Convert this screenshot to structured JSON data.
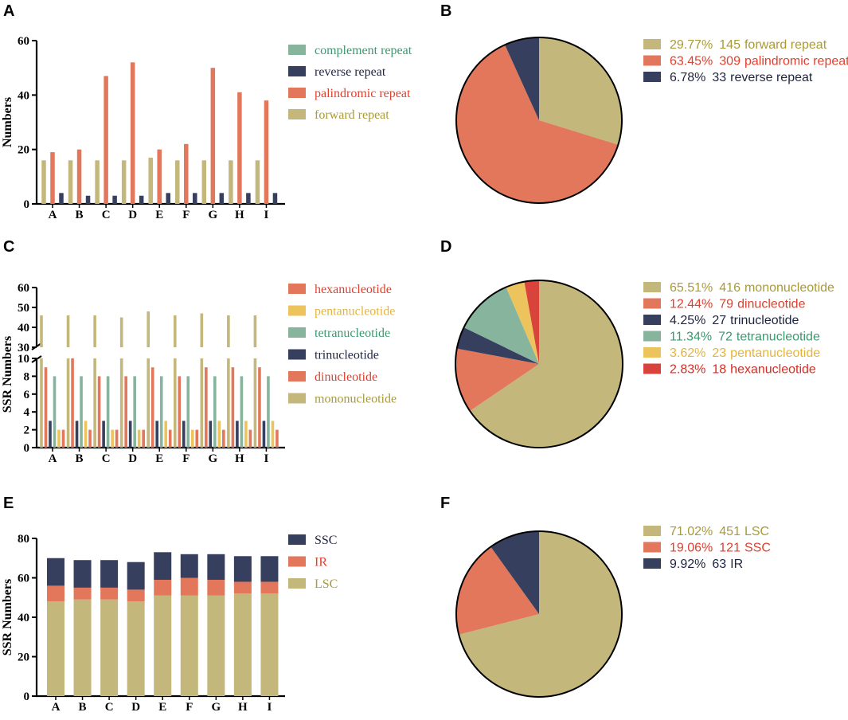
{
  "colors": {
    "complement": "#86b49c",
    "reverse": "#373f5e",
    "palindromic": "#e2775c",
    "forward": "#c3b77c",
    "hexanucleotide": "#e2775c",
    "pentanucleotide": "#ecc35c",
    "tetranucleotide": "#86b49c",
    "trinucleotide": "#373f5e",
    "dinucleotide": "#e2775c",
    "mononucleotide": "#c3b77c",
    "hex_pie": "#d8433b",
    "ssc": "#373f5e",
    "ir": "#e2775c",
    "lsc": "#c3b77c",
    "text_forward": "#a99a3a",
    "text_palindromic": "#e0402e",
    "text_reverse": "#1f2440",
    "text_complement": "#3d9870",
    "text_penta": "#e5b53a",
    "text_hex": "#d92b20"
  },
  "panel_labels": [
    "A",
    "B",
    "C",
    "D",
    "E",
    "F"
  ],
  "chart_data": [
    {
      "id": "A",
      "type": "bar",
      "categories": [
        "A",
        "B",
        "C",
        "D",
        "E",
        "F",
        "G",
        "H",
        "I"
      ],
      "series": [
        {
          "name": "forward repeat",
          "color_key": "forward",
          "values": [
            16,
            16,
            16,
            16,
            17,
            16,
            16,
            16,
            16
          ]
        },
        {
          "name": "palindromic repeat",
          "color_key": "palindromic",
          "values": [
            19,
            20,
            47,
            52,
            20,
            22,
            50,
            41,
            38
          ]
        },
        {
          "name": "reverse repeat",
          "color_key": "reverse",
          "values": [
            4,
            3,
            3,
            3,
            4,
            4,
            4,
            4,
            4
          ]
        }
      ],
      "legend": [
        {
          "label": "complement repeat",
          "color_key": "complement",
          "text_key": "text_complement"
        },
        {
          "label": "reverse repeat",
          "color_key": "reverse",
          "text_key": "text_reverse"
        },
        {
          "label": "palindromic repeat",
          "color_key": "palindromic",
          "text_key": "text_palindromic"
        },
        {
          "label": "forward repeat",
          "color_key": "forward",
          "text_key": "text_forward"
        }
      ],
      "ylabel": "Numbers",
      "ylim": [
        0,
        60
      ],
      "yticks": [
        0,
        20,
        40,
        60
      ]
    },
    {
      "id": "B",
      "type": "pie",
      "slices": [
        {
          "pct": "29.77%",
          "count": "145",
          "label": "forward repeat",
          "value": 145,
          "color_key": "forward",
          "text_key": "text_forward"
        },
        {
          "pct": "63.45%",
          "count": "309",
          "label": "palindromic repeat",
          "value": 309,
          "color_key": "palindromic",
          "text_key": "text_palindromic"
        },
        {
          "pct": "6.78%",
          "count": "33",
          "label": "reverse repeat",
          "value": 33,
          "color_key": "reverse",
          "text_key": "text_reverse"
        }
      ]
    },
    {
      "id": "C",
      "type": "bar",
      "categories": [
        "A",
        "B",
        "C",
        "D",
        "E",
        "F",
        "G",
        "H",
        "I"
      ],
      "series": [
        {
          "name": "mononucleotide",
          "color_key": "mononucleotide",
          "values": [
            46,
            46,
            46,
            45,
            48,
            46,
            47,
            46,
            46
          ]
        },
        {
          "name": "dinucleotide",
          "color_key": "dinucleotide",
          "values": [
            9,
            10,
            8,
            8,
            9,
            8,
            9,
            9,
            9
          ]
        },
        {
          "name": "trinucleotide",
          "color_key": "trinucleotide",
          "values": [
            3,
            3,
            3,
            3,
            3,
            3,
            3,
            3,
            3
          ]
        },
        {
          "name": "tetranucleotide",
          "color_key": "tetranucleotide",
          "values": [
            8,
            8,
            8,
            8,
            8,
            8,
            8,
            8,
            8
          ]
        },
        {
          "name": "pentanucleotide",
          "color_key": "pentanucleotide",
          "values": [
            2,
            3,
            2,
            2,
            3,
            2,
            3,
            3,
            3
          ]
        },
        {
          "name": "hexanucleotide",
          "color_key": "hexanucleotide",
          "values": [
            2,
            2,
            2,
            2,
            2,
            2,
            2,
            2,
            2
          ]
        }
      ],
      "legend": [
        {
          "label": "hexanucleotide",
          "color_key": "hexanucleotide",
          "text_key": "text_palindromic"
        },
        {
          "label": "pentanucleotide",
          "color_key": "pentanucleotide",
          "text_key": "text_penta"
        },
        {
          "label": "tetranucleotide",
          "color_key": "tetranucleotide",
          "text_key": "text_complement"
        },
        {
          "label": "trinucleotide",
          "color_key": "trinucleotide",
          "text_key": "text_reverse"
        },
        {
          "label": "dinucleotide",
          "color_key": "dinucleotide",
          "text_key": "text_palindromic"
        },
        {
          "label": "mononucleotide",
          "color_key": "mononucleotide",
          "text_key": "text_forward"
        }
      ],
      "ylabel": "SSR Numbers",
      "broken_axis": true,
      "lower_range": [
        0,
        10
      ],
      "upper_range": [
        30,
        60
      ],
      "yticks_lower": [
        0,
        2,
        4,
        6,
        8,
        10
      ],
      "yticks_upper": [
        30,
        40,
        50,
        60
      ]
    },
    {
      "id": "D",
      "type": "pie",
      "slices": [
        {
          "pct": "65.51%",
          "count": "416",
          "label": "mononucleotide",
          "value": 416,
          "color_key": "mononucleotide",
          "text_key": "text_forward"
        },
        {
          "pct": "12.44%",
          "count": "79",
          "label": "dinucleotide",
          "value": 79,
          "color_key": "dinucleotide",
          "text_key": "text_palindromic"
        },
        {
          "pct": "4.25%",
          "count": "27",
          "label": "trinucleotide",
          "value": 27,
          "color_key": "trinucleotide",
          "text_key": "text_reverse"
        },
        {
          "pct": "11.34%",
          "count": "72",
          "label": "tetranucleotide",
          "value": 72,
          "color_key": "tetranucleotide",
          "text_key": "text_complement"
        },
        {
          "pct": "3.62%",
          "count": "23",
          "label": "pentanucleotide",
          "value": 23,
          "color_key": "pentanucleotide",
          "text_key": "text_penta"
        },
        {
          "pct": "2.83%",
          "count": "18",
          "label": "hexanucleotide",
          "value": 18,
          "color_key": "hex_pie",
          "text_key": "text_hex"
        }
      ]
    },
    {
      "id": "E",
      "type": "bar",
      "stacked": true,
      "categories": [
        "A",
        "B",
        "C",
        "D",
        "E",
        "F",
        "G",
        "H",
        "I"
      ],
      "series": [
        {
          "name": "LSC",
          "color_key": "lsc",
          "values": [
            48,
            49,
            49,
            48,
            51,
            51,
            51,
            52,
            52
          ]
        },
        {
          "name": "IR",
          "color_key": "ir",
          "values": [
            8,
            6,
            6,
            6,
            8,
            9,
            8,
            6,
            6
          ]
        },
        {
          "name": "SSC",
          "color_key": "ssc",
          "values": [
            14,
            14,
            14,
            14,
            14,
            12,
            13,
            13,
            13
          ]
        }
      ],
      "legend": [
        {
          "label": "SSC",
          "color_key": "ssc",
          "text_key": "text_reverse"
        },
        {
          "label": "IR",
          "color_key": "ir",
          "text_key": "text_palindromic"
        },
        {
          "label": "LSC",
          "color_key": "lsc",
          "text_key": "text_forward"
        }
      ],
      "ylabel": "SSR Numbers",
      "ylim": [
        0,
        80
      ],
      "yticks": [
        0,
        20,
        40,
        60,
        80
      ]
    },
    {
      "id": "F",
      "type": "pie",
      "slices": [
        {
          "pct": "71.02%",
          "count": "451",
          "label": "LSC",
          "value": 451,
          "color_key": "lsc",
          "text_key": "text_forward"
        },
        {
          "pct": "19.06%",
          "count": "121",
          "label": "SSC",
          "value": 121,
          "color_key": "ir",
          "text_key": "text_palindromic"
        },
        {
          "pct": "9.92%",
          "count": "63",
          "label": "IR",
          "value": 63,
          "color_key": "ssc",
          "text_key": "text_reverse"
        }
      ]
    }
  ]
}
